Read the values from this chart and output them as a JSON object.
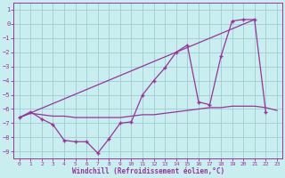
{
  "title": "",
  "xlabel": "Windchill (Refroidissement éolien,°C)",
  "ylabel": "",
  "background_color": "#c8eef0",
  "grid_color": "#a0ccd0",
  "line_color": "#993399",
  "xlim": [
    -0.5,
    23.5
  ],
  "ylim": [
    -9.5,
    1.5
  ],
  "yticks": [
    1,
    0,
    -1,
    -2,
    -3,
    -4,
    -5,
    -6,
    -7,
    -8,
    -9
  ],
  "xticks": [
    0,
    1,
    2,
    3,
    4,
    5,
    6,
    7,
    8,
    9,
    10,
    11,
    12,
    13,
    14,
    15,
    16,
    17,
    18,
    19,
    20,
    21,
    22,
    23
  ],
  "series1_x": [
    0,
    1,
    2,
    3,
    4,
    5,
    6,
    7,
    8,
    9,
    10,
    11,
    12,
    13,
    14,
    15,
    16,
    17,
    18,
    19,
    20,
    21,
    22
  ],
  "series1_y": [
    -6.6,
    -6.2,
    -6.7,
    -7.1,
    -8.2,
    -8.3,
    -8.3,
    -9.1,
    -8.1,
    -7.0,
    -6.9,
    -5.0,
    -4.0,
    -3.1,
    -2.0,
    -1.5,
    -5.5,
    -5.7,
    -2.3,
    0.2,
    0.3,
    0.3,
    -6.2
  ],
  "series2_x": [
    0,
    1,
    2,
    3,
    4,
    5,
    6,
    7,
    8,
    9,
    10,
    11,
    12,
    13,
    14,
    15,
    16,
    17,
    18,
    19,
    20,
    21,
    22,
    23
  ],
  "series2_y": [
    -6.6,
    -6.3,
    -6.4,
    -6.5,
    -6.5,
    -6.6,
    -6.6,
    -6.6,
    -6.6,
    -6.6,
    -6.5,
    -6.4,
    -6.4,
    -6.3,
    -6.2,
    -6.1,
    -6.0,
    -5.9,
    -5.9,
    -5.8,
    -5.8,
    -5.8,
    -5.9,
    -6.1
  ],
  "series3_x": [
    0,
    21
  ],
  "series3_y": [
    -6.6,
    0.3
  ]
}
